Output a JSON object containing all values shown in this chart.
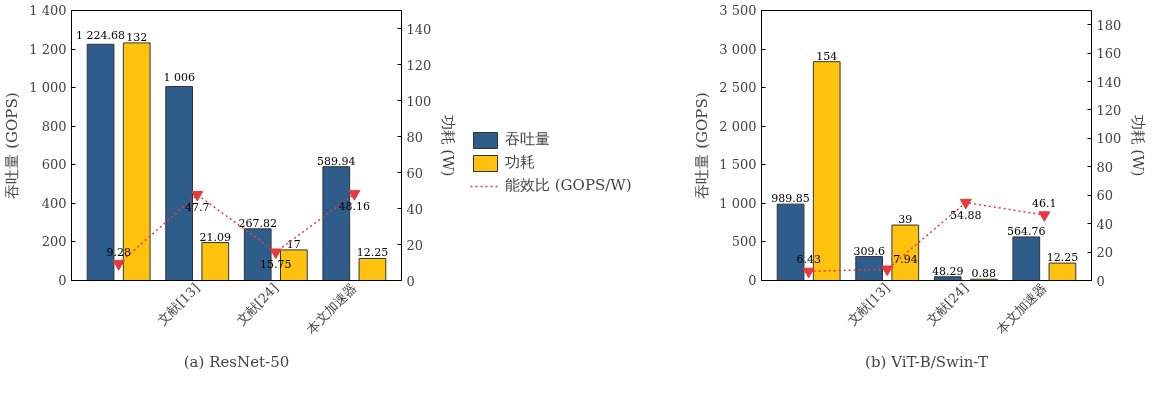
{
  "chart_data": [
    {
      "type": "bar",
      "title": "(a) ResNet-50",
      "ylabel": "吞吐量 (GOPS)",
      "y2label": "功耗 (W)",
      "categories": [
        null,
        "文献[13]",
        "文献[24]",
        "本文加速器"
      ],
      "ylim": [
        0,
        1400
      ],
      "yticks": [
        0,
        200,
        400,
        600,
        800,
        {
          "value": 1000,
          "label": "1 000"
        },
        {
          "value": 1200,
          "label": "1 200"
        },
        {
          "value": 1400,
          "label": "1 400"
        }
      ],
      "y2lim": [
        0,
        150
      ],
      "y2ticks": [
        0,
        20,
        40,
        60,
        80,
        100,
        120,
        140
      ],
      "grid": false,
      "legend": "right",
      "series": [
        {
          "name": "吞吐量",
          "color": "#2e5d8c",
          "values": [
            1224.68,
            1006,
            267.82,
            589.94
          ],
          "value_labels": [
            "1 224.68",
            "1 006",
            "267.82",
            "589.94"
          ]
        },
        {
          "name": "功耗",
          "axis": "y2",
          "color": "#ffc20e",
          "values": [
            132,
            21.09,
            17,
            12.25
          ],
          "value_labels": [
            "132",
            "21.09",
            "17",
            "12.25"
          ]
        },
        {
          "name": "能效比 (GOPS/W)",
          "type": "line",
          "axis": "y2",
          "color": "#e8383d",
          "marker": "triangle",
          "line_style": "dotted",
          "values": [
            9.28,
            47.7,
            15.75,
            48.16
          ],
          "value_labels": [
            "9.28",
            "47.7",
            "15.75",
            "48.16"
          ]
        }
      ]
    },
    {
      "type": "bar",
      "title": "(b) ViT-B/Swin-T",
      "ylabel": "吞吐量 (GOPS)",
      "y2label": "功耗 (W)",
      "categories": [
        null,
        "文献[13]",
        "文献[24]",
        "本文加速器"
      ],
      "ylim": [
        0,
        3500
      ],
      "yticks": [
        0,
        500,
        {
          "value": 1000,
          "label": "1 000"
        },
        {
          "value": 1500,
          "label": "1 500"
        },
        {
          "value": 2000,
          "label": "2 000"
        },
        {
          "value": 2500,
          "label": "2 500"
        },
        {
          "value": 3000,
          "label": "3 000"
        },
        {
          "value": 3500,
          "label": "3 500"
        }
      ],
      "y2lim": [
        0,
        190
      ],
      "y2ticks": [
        0,
        20,
        40,
        60,
        80,
        100,
        120,
        140,
        160,
        180
      ],
      "grid": false,
      "series": [
        {
          "color": "#2e5d8c",
          "values": [
            989.85,
            309.6,
            48.29,
            564.76
          ],
          "value_labels": [
            "989.85",
            "309.6",
            "48.29",
            "564.76"
          ]
        },
        {
          "axis": "y2",
          "color": "#ffc20e",
          "values": [
            154,
            39,
            0.88,
            12.25
          ],
          "value_labels": [
            "154",
            "39",
            "0.88",
            "12.25"
          ]
        },
        {
          "type": "line",
          "axis": "y2",
          "color": "#e8383d",
          "marker": "triangle",
          "line_style": "dotted",
          "values": [
            6.43,
            7.94,
            54.88,
            46.1
          ],
          "value_labels": [
            "6.43",
            "7.94",
            "54.88",
            "46.1"
          ]
        }
      ]
    }
  ]
}
